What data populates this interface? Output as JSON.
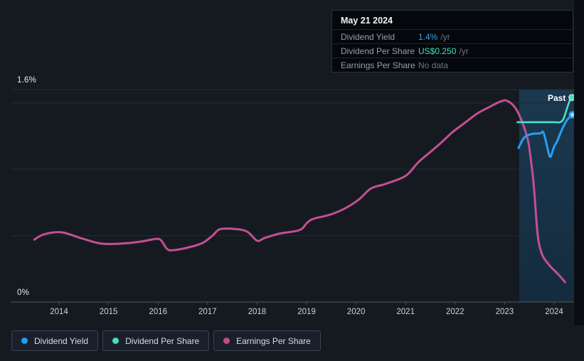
{
  "page": {
    "background": "#151a21",
    "future_strip_color": "#0a0e14"
  },
  "tooltip": {
    "date": "May 21 2024",
    "rows": [
      {
        "label": "Dividend Yield",
        "value": "1.4%",
        "suffix": "/yr",
        "value_color": "#36a4f2"
      },
      {
        "label": "Dividend Per Share",
        "value": "US$0.250",
        "suffix": "/yr",
        "value_color": "#45e0c2"
      },
      {
        "label": "Earnings Per Share",
        "value": "No data",
        "suffix": "",
        "value_color": "#6e7681"
      }
    ]
  },
  "chart_data": {
    "type": "line",
    "title": "Dividend history chart",
    "ylim": [
      0,
      1.6
    ],
    "y_axis_labels": {
      "top": "1.6%",
      "bottom": "0%"
    },
    "grid_pcts": [
      0.5,
      1.0,
      1.5
    ],
    "x_ticks": [
      "2014",
      "2015",
      "2016",
      "2017",
      "2018",
      "2019",
      "2020",
      "2021",
      "2022",
      "2023",
      "2024"
    ],
    "past_band": {
      "label": "Past",
      "x_start": 2023.28,
      "x_end": 2024.4
    },
    "series": [
      {
        "name": "Dividend Yield",
        "color": "#2b9df0",
        "width": 3,
        "end_dot_style": "ring",
        "end_dot": [
          2024.37,
          1.41
        ],
        "points": [
          [
            2023.28,
            1.16
          ],
          [
            2023.4,
            1.24
          ],
          [
            2023.55,
            1.265
          ],
          [
            2023.72,
            1.27
          ],
          [
            2023.78,
            1.28
          ],
          [
            2023.84,
            1.2
          ],
          [
            2023.89,
            1.12
          ],
          [
            2023.93,
            1.095
          ],
          [
            2024.0,
            1.17
          ],
          [
            2024.06,
            1.21
          ],
          [
            2024.16,
            1.3
          ],
          [
            2024.26,
            1.37
          ],
          [
            2024.37,
            1.41
          ]
        ]
      },
      {
        "name": "Dividend Per Share",
        "color": "#4fe0c3",
        "width": 2.6,
        "end_dot_style": "solid",
        "end_dot": [
          2024.36,
          1.54
        ],
        "points": [
          [
            2023.26,
            1.354
          ],
          [
            2023.6,
            1.354
          ],
          [
            2024.0,
            1.354
          ],
          [
            2024.12,
            1.354
          ],
          [
            2024.19,
            1.38
          ],
          [
            2024.27,
            1.47
          ],
          [
            2024.33,
            1.53
          ],
          [
            2024.36,
            1.54
          ]
        ]
      },
      {
        "name": "Earnings Per Share",
        "color": "#c44f95",
        "width": 3,
        "points": [
          [
            2013.5,
            0.47
          ],
          [
            2013.7,
            0.51
          ],
          [
            2014.05,
            0.525
          ],
          [
            2014.45,
            0.48
          ],
          [
            2014.85,
            0.44
          ],
          [
            2015.25,
            0.44
          ],
          [
            2015.65,
            0.455
          ],
          [
            2015.95,
            0.475
          ],
          [
            2016.06,
            0.465
          ],
          [
            2016.18,
            0.4
          ],
          [
            2016.3,
            0.39
          ],
          [
            2016.6,
            0.41
          ],
          [
            2016.9,
            0.445
          ],
          [
            2017.1,
            0.5
          ],
          [
            2017.25,
            0.548
          ],
          [
            2017.55,
            0.55
          ],
          [
            2017.8,
            0.53
          ],
          [
            2018.0,
            0.462
          ],
          [
            2018.15,
            0.482
          ],
          [
            2018.45,
            0.515
          ],
          [
            2018.75,
            0.532
          ],
          [
            2018.9,
            0.55
          ],
          [
            2019.02,
            0.6
          ],
          [
            2019.15,
            0.628
          ],
          [
            2019.45,
            0.655
          ],
          [
            2019.75,
            0.7
          ],
          [
            2020.05,
            0.77
          ],
          [
            2020.3,
            0.855
          ],
          [
            2020.6,
            0.89
          ],
          [
            2021.0,
            0.95
          ],
          [
            2021.25,
            1.05
          ],
          [
            2021.5,
            1.13
          ],
          [
            2021.72,
            1.2
          ],
          [
            2021.95,
            1.28
          ],
          [
            2022.2,
            1.35
          ],
          [
            2022.45,
            1.42
          ],
          [
            2022.7,
            1.47
          ],
          [
            2022.92,
            1.51
          ],
          [
            2023.05,
            1.515
          ],
          [
            2023.22,
            1.46
          ],
          [
            2023.36,
            1.35
          ],
          [
            2023.47,
            1.22
          ],
          [
            2023.52,
            1.1
          ],
          [
            2023.57,
            0.95
          ],
          [
            2023.61,
            0.78
          ],
          [
            2023.645,
            0.6
          ],
          [
            2023.68,
            0.47
          ],
          [
            2023.72,
            0.4
          ],
          [
            2023.78,
            0.34
          ],
          [
            2023.92,
            0.27
          ],
          [
            2024.08,
            0.21
          ],
          [
            2024.22,
            0.15
          ]
        ]
      }
    ]
  },
  "legend": [
    {
      "label": "Dividend Yield",
      "color": "#1e9df2"
    },
    {
      "label": "Dividend Per Share",
      "color": "#41e0c0"
    },
    {
      "label": "Earnings Per Share",
      "color": "#c2498b"
    }
  ]
}
